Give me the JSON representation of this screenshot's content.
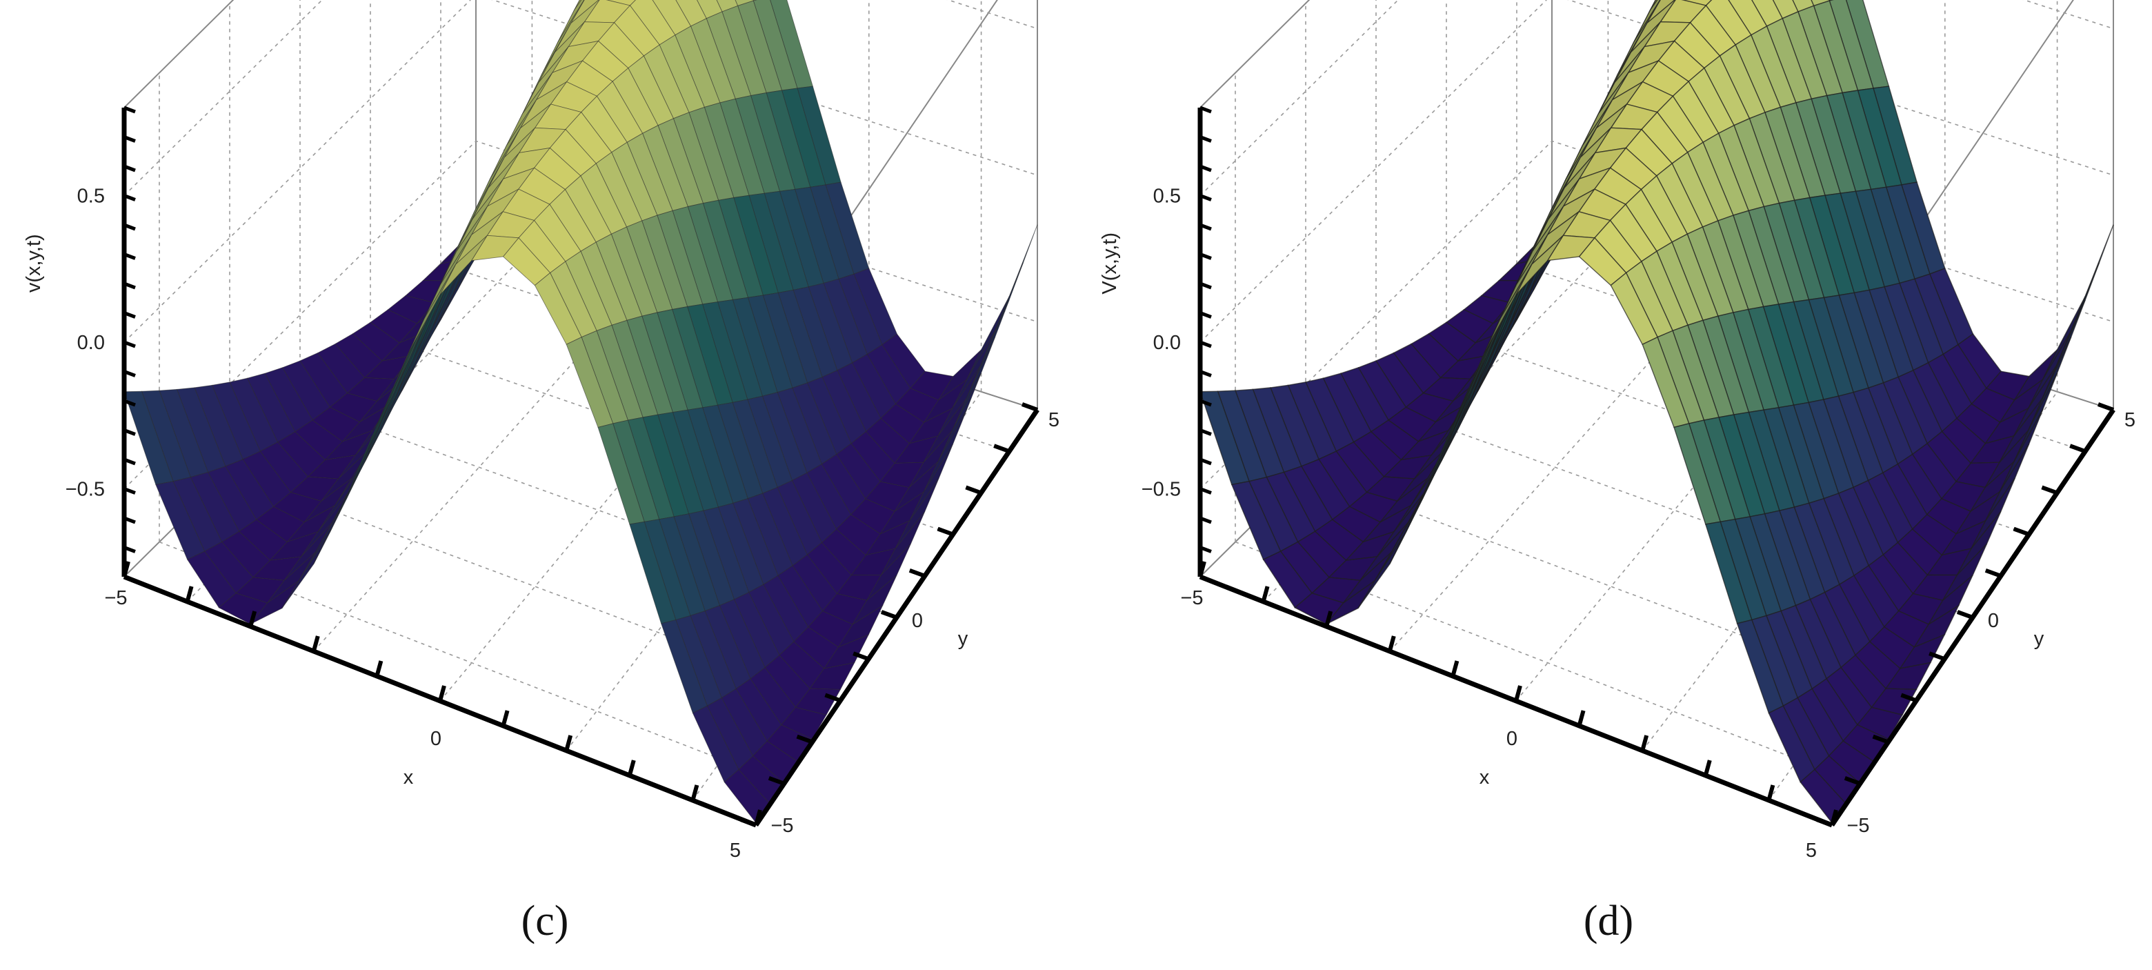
{
  "chart_data": [
    {
      "type": "surface",
      "panel_label": "(c)",
      "xlabel": "x",
      "ylabel": "y",
      "zlabel": "v(x,y,t)",
      "xlim": [
        -5,
        5
      ],
      "ylim": [
        -5,
        5
      ],
      "zlim": [
        -0.8,
        0.8
      ],
      "x_ticks": [
        "−5",
        "0",
        "5"
      ],
      "y_ticks": [
        "−5",
        "0",
        "5"
      ],
      "z_ticks": [
        "0.5",
        "0.0",
        "−0.5"
      ],
      "z_tick_values": [
        0.5,
        0.0,
        -0.5
      ],
      "surface": {
        "function": "0.8*cos(0.75*x + 0.15*y)",
        "amplitude": 0.8,
        "kx": 0.75,
        "ky": 0.15,
        "mesh_lines": 21,
        "smooth": true
      },
      "grid": true,
      "colormap": "viridis-like"
    },
    {
      "type": "surface",
      "panel_label": "(d)",
      "xlabel": "x",
      "ylabel": "y",
      "zlabel": "V(x,y,t)",
      "xlim": [
        -5,
        5
      ],
      "ylim": [
        -5,
        5
      ],
      "zlim": [
        -0.8,
        0.8
      ],
      "x_ticks": [
        "−5",
        "0",
        "5"
      ],
      "y_ticks": [
        "−5",
        "0",
        "5"
      ],
      "z_ticks": [
        "0.5",
        "0.0",
        "−0.5"
      ],
      "z_tick_values": [
        0.5,
        0.0,
        -0.5
      ],
      "surface": {
        "function": "0.8*cos(0.75*x + 0.15*y)",
        "amplitude": 0.8,
        "kx": 0.75,
        "ky": 0.15,
        "mesh_lines": 21,
        "smooth": false
      },
      "grid": true,
      "colormap": "viridis-like"
    }
  ],
  "colors": {
    "low": "#2c0f6b",
    "mid": "#1f5b5a",
    "high": "#f4f27a"
  }
}
